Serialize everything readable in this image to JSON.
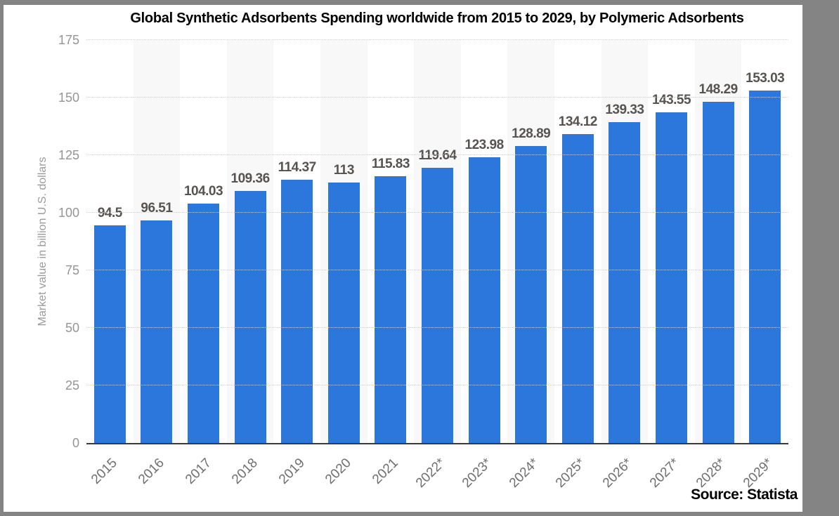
{
  "window": {
    "frame_color": "#848484",
    "canvas_color": "#ffffff"
  },
  "chart_data": {
    "type": "bar",
    "title": "Global Synthetic Adsorbents Spending worldwide from 2015 to 2029, by Polymeric Adsorbents",
    "categories": [
      "2015",
      "2016",
      "2017",
      "2018",
      "2019",
      "2020",
      "2021",
      "2022*",
      "2023*",
      "2024*",
      "2025*",
      "2026*",
      "2027*",
      "2028*",
      "2029*"
    ],
    "values": [
      94.5,
      96.51,
      104.03,
      109.36,
      114.37,
      113,
      115.83,
      119.64,
      123.98,
      128.89,
      134.12,
      139.33,
      143.55,
      148.29,
      153.03
    ],
    "xlabel": "",
    "ylabel": "Market value in billion U.S. dollars",
    "ylim": [
      0,
      175
    ],
    "yticks": [
      0,
      25,
      50,
      75,
      100,
      125,
      150,
      175
    ],
    "grid": "horizontal-dotted",
    "legend": "none",
    "bar_color": "#2b77dc",
    "band_color": "#f8f8f8",
    "value_labels": "above bars",
    "source": "Source: Statista"
  }
}
